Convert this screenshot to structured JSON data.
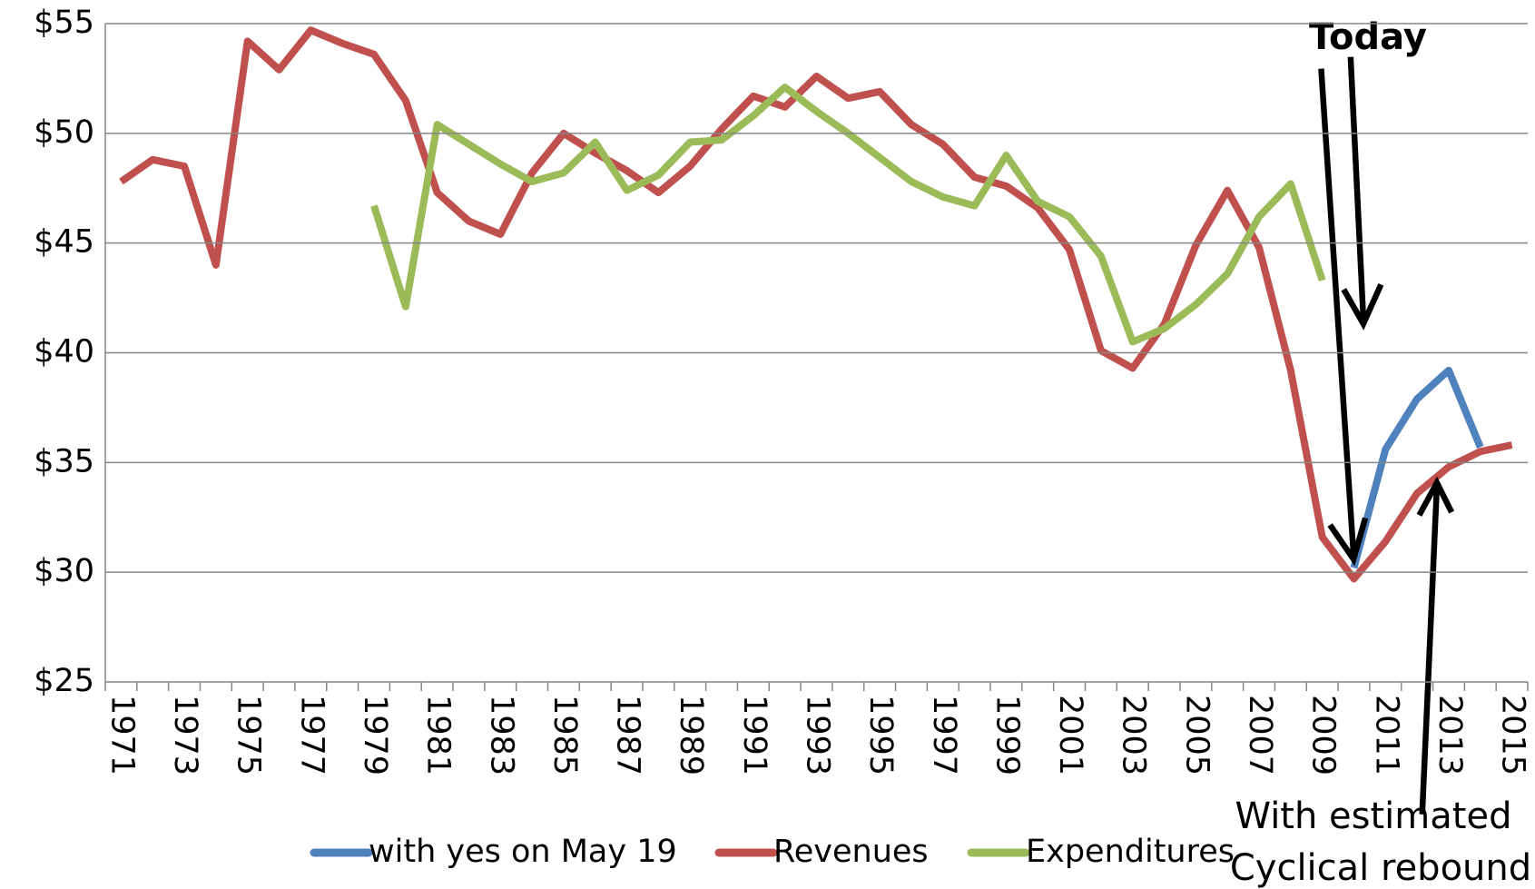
{
  "chart_data": {
    "type": "line",
    "categories": [
      "1971",
      null,
      "1973",
      null,
      "1975",
      null,
      "1977",
      null,
      "1979",
      null,
      "1981",
      null,
      "1983",
      null,
      "1985",
      null,
      "1987",
      null,
      "1989",
      null,
      "1991",
      null,
      "1993",
      null,
      "1995",
      null,
      "1997",
      null,
      "1999",
      null,
      "2001",
      null,
      "2003",
      null,
      "2005",
      null,
      "2007",
      null,
      "2009",
      null,
      "2011",
      null,
      "2013",
      null,
      "2015"
    ],
    "series": [
      {
        "name": "with yes on May 19",
        "color": "#4f81bd",
        "values": [
          null,
          null,
          null,
          null,
          null,
          null,
          null,
          null,
          null,
          null,
          null,
          null,
          null,
          null,
          null,
          null,
          null,
          null,
          null,
          null,
          null,
          null,
          null,
          null,
          null,
          null,
          null,
          null,
          null,
          null,
          null,
          null,
          null,
          null,
          null,
          null,
          null,
          null,
          null,
          30.2,
          35.6,
          37.9,
          39.2,
          35.7,
          null
        ]
      },
      {
        "name": "Revenues",
        "color": "#c0504d",
        "values": [
          47.8,
          48.8,
          48.5,
          44.0,
          54.2,
          52.9,
          54.7,
          54.1,
          53.6,
          51.5,
          47.3,
          46.0,
          45.4,
          48.2,
          50.0,
          49.1,
          48.3,
          47.3,
          48.5,
          50.2,
          51.7,
          51.2,
          52.6,
          51.6,
          51.9,
          50.4,
          49.5,
          48.0,
          47.6,
          46.6,
          44.7,
          40.1,
          39.3,
          41.3,
          44.9,
          47.4,
          44.8,
          39.2,
          31.6,
          29.7,
          31.4,
          33.6,
          34.8,
          35.5,
          35.8
        ]
      },
      {
        "name": "Expenditures",
        "color": "#9bbb59",
        "values": [
          null,
          null,
          null,
          null,
          null,
          null,
          null,
          null,
          46.7,
          42.1,
          50.4,
          49.5,
          48.6,
          47.8,
          48.2,
          49.6,
          47.4,
          48.1,
          49.6,
          49.7,
          50.8,
          52.1,
          51.0,
          50.0,
          48.9,
          47.8,
          47.1,
          46.7,
          49.0,
          46.9,
          46.2,
          44.4,
          40.5,
          41.1,
          42.2,
          43.6,
          46.2,
          47.7,
          43.3,
          null,
          null,
          null,
          null,
          null,
          null
        ]
      }
    ],
    "ylim": [
      25,
      55
    ],
    "yticks": [
      {
        "value": 25,
        "label": "$25"
      },
      {
        "value": 30,
        "label": "$30"
      },
      {
        "value": 35,
        "label": "$35"
      },
      {
        "value": 40,
        "label": "$40"
      },
      {
        "value": 45,
        "label": "$45"
      },
      {
        "value": 50,
        "label": "$50"
      },
      {
        "value": 55,
        "label": "$55"
      }
    ],
    "grid": true,
    "legend": "bottom",
    "annotations": [
      "Today",
      "With estimated",
      "Cyclical rebound"
    ]
  }
}
